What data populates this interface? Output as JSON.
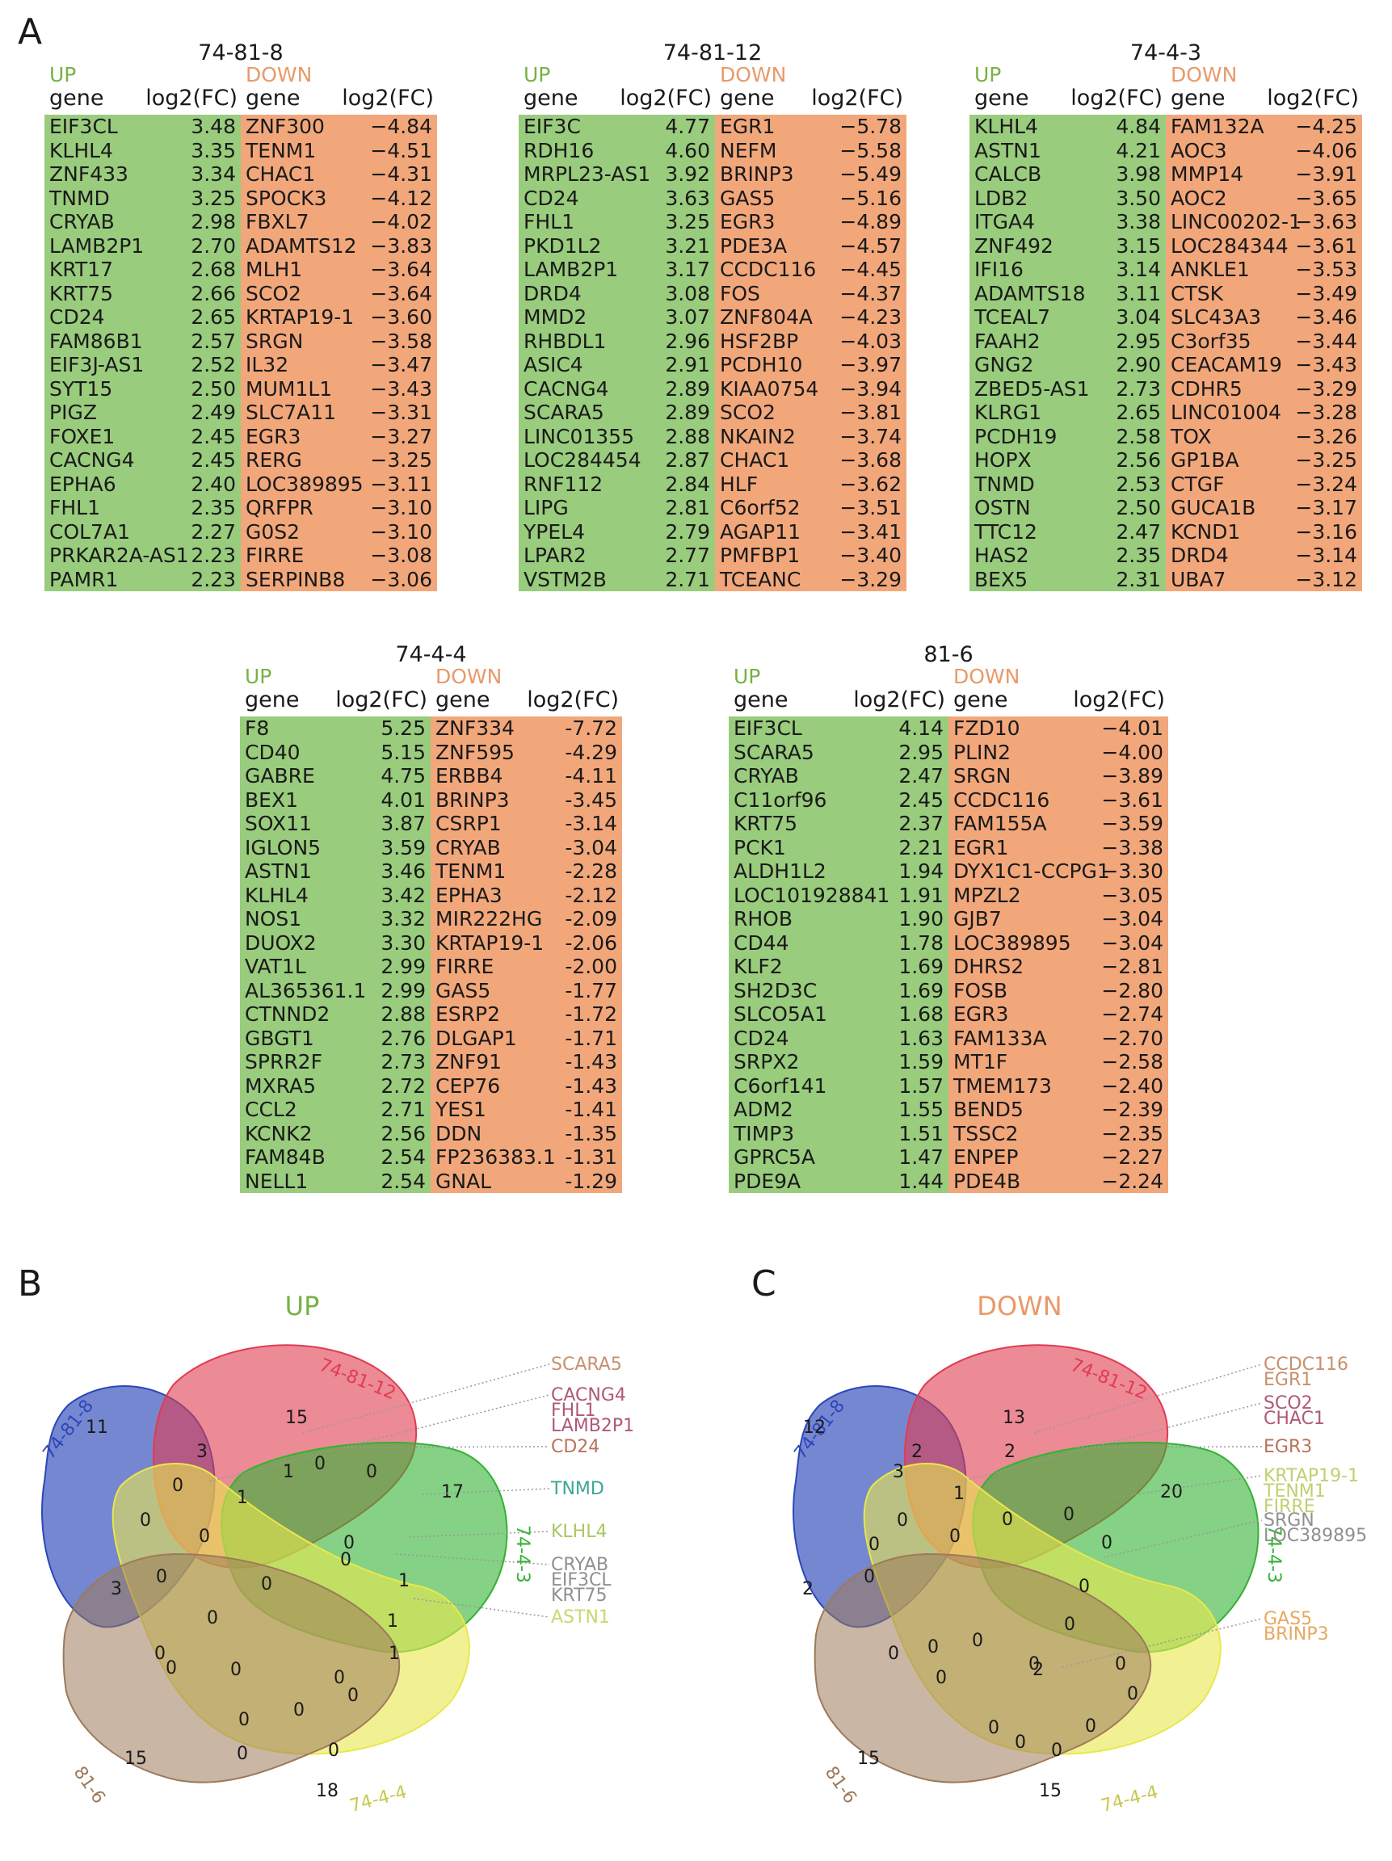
{
  "panels": {
    "a": "A",
    "b": "B",
    "c": "C"
  },
  "tables": [
    {
      "title": "74-81-8",
      "up_label": "UP",
      "down_label": "DOWN",
      "gene_hdr": "gene",
      "fc_hdr": "log2(FC)",
      "up": [
        [
          "EIF3CL",
          "3.48"
        ],
        [
          "KLHL4",
          "3.35"
        ],
        [
          "ZNF433",
          "3.34"
        ],
        [
          "TNMD",
          "3.25"
        ],
        [
          "CRYAB",
          "2.98"
        ],
        [
          "LAMB2P1",
          "2.70"
        ],
        [
          "KRT17",
          "2.68"
        ],
        [
          "KRT75",
          "2.66"
        ],
        [
          "CD24",
          "2.65"
        ],
        [
          "FAM86B1",
          "2.57"
        ],
        [
          "EIF3J-AS1",
          "2.52"
        ],
        [
          "SYT15",
          "2.50"
        ],
        [
          "PIGZ",
          "2.49"
        ],
        [
          "FOXE1",
          "2.45"
        ],
        [
          "CACNG4",
          "2.45"
        ],
        [
          "EPHA6",
          "2.40"
        ],
        [
          "FHL1",
          "2.35"
        ],
        [
          "COL7A1",
          "2.27"
        ],
        [
          "PRKAR2A-AS1",
          "2.23"
        ],
        [
          "PAMR1",
          "2.23"
        ]
      ],
      "down": [
        [
          "ZNF300",
          "−4.84"
        ],
        [
          "TENM1",
          "−4.51"
        ],
        [
          "CHAC1",
          "−4.31"
        ],
        [
          "SPOCK3",
          "−4.12"
        ],
        [
          "FBXL7",
          "−4.02"
        ],
        [
          "ADAMTS12",
          "−3.83"
        ],
        [
          "MLH1",
          "−3.64"
        ],
        [
          "SCO2",
          "−3.64"
        ],
        [
          "KRTAP19-1",
          "−3.60"
        ],
        [
          "SRGN",
          "−3.58"
        ],
        [
          "IL32",
          "−3.47"
        ],
        [
          "MUM1L1",
          "−3.43"
        ],
        [
          "SLC7A11",
          "−3.31"
        ],
        [
          "EGR3",
          "−3.27"
        ],
        [
          "RERG",
          "−3.25"
        ],
        [
          "LOC389895",
          "−3.11"
        ],
        [
          "QRFPR",
          "−3.10"
        ],
        [
          "G0S2",
          "−3.10"
        ],
        [
          "FIRRE",
          "−3.08"
        ],
        [
          "SERPINB8",
          "−3.06"
        ]
      ]
    },
    {
      "title": "74-81-12",
      "up_label": "UP",
      "down_label": "DOWN",
      "gene_hdr": "gene",
      "fc_hdr": "log2(FC)",
      "up": [
        [
          "EIF3C",
          "4.77"
        ],
        [
          "RDH16",
          "4.60"
        ],
        [
          "MRPL23-AS1",
          "3.92"
        ],
        [
          "CD24",
          "3.63"
        ],
        [
          "FHL1",
          "3.25"
        ],
        [
          "PKD1L2",
          "3.21"
        ],
        [
          "LAMB2P1",
          "3.17"
        ],
        [
          "DRD4",
          "3.08"
        ],
        [
          "MMD2",
          "3.07"
        ],
        [
          "RHBDL1",
          "2.96"
        ],
        [
          "ASIC4",
          "2.91"
        ],
        [
          "CACNG4",
          "2.89"
        ],
        [
          "SCARA5",
          "2.89"
        ],
        [
          "LINC01355",
          "2.88"
        ],
        [
          "LOC284454",
          "2.87"
        ],
        [
          "RNF112",
          "2.84"
        ],
        [
          "LIPG",
          "2.81"
        ],
        [
          "YPEL4",
          "2.79"
        ],
        [
          "LPAR2",
          "2.77"
        ],
        [
          "VSTM2B",
          "2.71"
        ]
      ],
      "down": [
        [
          "EGR1",
          "−5.78"
        ],
        [
          "NEFM",
          "−5.58"
        ],
        [
          "BRINP3",
          "−5.49"
        ],
        [
          "GAS5",
          "−5.16"
        ],
        [
          "EGR3",
          "−4.89"
        ],
        [
          "PDE3A",
          "−4.57"
        ],
        [
          "CCDC116",
          "−4.45"
        ],
        [
          "FOS",
          "−4.37"
        ],
        [
          "ZNF804A",
          "−4.23"
        ],
        [
          "HSF2BP",
          "−4.03"
        ],
        [
          "PCDH10",
          "−3.97"
        ],
        [
          "KIAA0754",
          "−3.94"
        ],
        [
          "SCO2",
          "−3.81"
        ],
        [
          "NKAIN2",
          "−3.74"
        ],
        [
          "CHAC1",
          "−3.68"
        ],
        [
          "HLF",
          "−3.62"
        ],
        [
          "C6orf52",
          "−3.51"
        ],
        [
          "AGAP11",
          "−3.41"
        ],
        [
          "PMFBP1",
          "−3.40"
        ],
        [
          "TCEANC",
          "−3.29"
        ]
      ]
    },
    {
      "title": "74-4-3",
      "up_label": "UP",
      "down_label": "DOWN",
      "gene_hdr": "gene",
      "fc_hdr": "log2(FC)",
      "up": [
        [
          "KLHL4",
          "4.84"
        ],
        [
          "ASTN1",
          "4.21"
        ],
        [
          "CALCB",
          "3.98"
        ],
        [
          "LDB2",
          "3.50"
        ],
        [
          "ITGA4",
          "3.38"
        ],
        [
          "ZNF492",
          "3.15"
        ],
        [
          "IFI16",
          "3.14"
        ],
        [
          "ADAMTS18",
          "3.11"
        ],
        [
          "TCEAL7",
          "3.04"
        ],
        [
          "FAAH2",
          "2.95"
        ],
        [
          "GNG2",
          "2.90"
        ],
        [
          "ZBED5-AS1",
          "2.73"
        ],
        [
          "KLRG1",
          "2.65"
        ],
        [
          "PCDH19",
          "2.58"
        ],
        [
          "HOPX",
          "2.56"
        ],
        [
          "TNMD",
          "2.53"
        ],
        [
          "OSTN",
          "2.50"
        ],
        [
          "TTC12",
          "2.47"
        ],
        [
          "HAS2",
          "2.35"
        ],
        [
          "BEX5",
          "2.31"
        ]
      ],
      "down": [
        [
          "FAM132A",
          "−4.25"
        ],
        [
          "AOC3",
          "−4.06"
        ],
        [
          "MMP14",
          "−3.91"
        ],
        [
          "AOC2",
          "−3.65"
        ],
        [
          "LINC00202-1",
          "−3.63"
        ],
        [
          "LOC284344",
          "−3.61"
        ],
        [
          "ANKLE1",
          "−3.53"
        ],
        [
          "CTSK",
          "−3.49"
        ],
        [
          "SLC43A3",
          "−3.46"
        ],
        [
          "C3orf35",
          "−3.44"
        ],
        [
          "CEACAM19",
          "−3.43"
        ],
        [
          "CDHR5",
          "−3.29"
        ],
        [
          "LINC01004",
          "−3.28"
        ],
        [
          "TOX",
          "−3.26"
        ],
        [
          "GP1BA",
          "−3.25"
        ],
        [
          "CTGF",
          "−3.24"
        ],
        [
          "GUCA1B",
          "−3.17"
        ],
        [
          "KCND1",
          "−3.16"
        ],
        [
          "DRD4",
          "−3.14"
        ],
        [
          "UBA7",
          "−3.12"
        ]
      ]
    },
    {
      "title": "74-4-4",
      "up_label": "UP",
      "down_label": "DOWN",
      "gene_hdr": "gene",
      "fc_hdr": "log2(FC)",
      "up": [
        [
          "F8",
          "5.25"
        ],
        [
          "CD40",
          "5.15"
        ],
        [
          "GABRE",
          "4.75"
        ],
        [
          "BEX1",
          "4.01"
        ],
        [
          "SOX11",
          "3.87"
        ],
        [
          "IGLON5",
          "3.59"
        ],
        [
          "ASTN1",
          "3.46"
        ],
        [
          "KLHL4",
          "3.42"
        ],
        [
          "NOS1",
          "3.32"
        ],
        [
          "DUOX2",
          "3.30"
        ],
        [
          "VAT1L",
          "2.99"
        ],
        [
          "AL365361.1",
          "2.99"
        ],
        [
          "CTNND2",
          "2.88"
        ],
        [
          "GBGT1",
          "2.76"
        ],
        [
          "SPRR2F",
          "2.73"
        ],
        [
          "MXRA5",
          "2.72"
        ],
        [
          "CCL2",
          "2.71"
        ],
        [
          "KCNK2",
          "2.56"
        ],
        [
          "FAM84B",
          "2.54"
        ],
        [
          "NELL1",
          "2.54"
        ]
      ],
      "down": [
        [
          "ZNF334",
          "-7.72"
        ],
        [
          "ZNF595",
          "-4.29"
        ],
        [
          "ERBB4",
          "-4.11"
        ],
        [
          "BRINP3",
          "-3.45"
        ],
        [
          "CSRP1",
          "-3.14"
        ],
        [
          "CRYAB",
          "-3.04"
        ],
        [
          "TENM1",
          "-2.28"
        ],
        [
          "EPHA3",
          "-2.12"
        ],
        [
          "MIR222HG",
          "-2.09"
        ],
        [
          "KRTAP19-1",
          "-2.06"
        ],
        [
          "FIRRE",
          "-2.00"
        ],
        [
          "GAS5",
          "-1.77"
        ],
        [
          "ESRP2",
          "-1.72"
        ],
        [
          "DLGAP1",
          "-1.71"
        ],
        [
          "ZNF91",
          "-1.43"
        ],
        [
          "CEP76",
          "-1.43"
        ],
        [
          "YES1",
          "-1.41"
        ],
        [
          "DDN",
          "-1.35"
        ],
        [
          "FP236383.1",
          "-1.31"
        ],
        [
          "GNAL",
          "-1.29"
        ]
      ]
    },
    {
      "title": "81-6",
      "up_label": "UP",
      "down_label": "DOWN",
      "gene_hdr": "gene",
      "fc_hdr": "log2(FC)",
      "up": [
        [
          "EIF3CL",
          "4.14"
        ],
        [
          "SCARA5",
          "2.95"
        ],
        [
          "CRYAB",
          "2.47"
        ],
        [
          "C11orf96",
          "2.45"
        ],
        [
          "KRT75",
          "2.37"
        ],
        [
          "PCK1",
          "2.21"
        ],
        [
          "ALDH1L2",
          "1.94"
        ],
        [
          "LOC101928841",
          "1.91"
        ],
        [
          "RHOB",
          "1.90"
        ],
        [
          "CD44",
          "1.78"
        ],
        [
          "KLF2",
          "1.69"
        ],
        [
          "SH2D3C",
          "1.69"
        ],
        [
          "SLCO5A1",
          "1.68"
        ],
        [
          "CD24",
          "1.63"
        ],
        [
          "SRPX2",
          "1.59"
        ],
        [
          "C6orf141",
          "1.57"
        ],
        [
          "ADM2",
          "1.55"
        ],
        [
          "TIMP3",
          "1.51"
        ],
        [
          "GPRC5A",
          "1.47"
        ],
        [
          "PDE9A",
          "1.44"
        ]
      ],
      "down": [
        [
          "FZD10",
          "−4.01"
        ],
        [
          "PLIN2",
          "−4.00"
        ],
        [
          "SRGN",
          "−3.89"
        ],
        [
          "CCDC116",
          "−3.61"
        ],
        [
          "FAM155A",
          "−3.59"
        ],
        [
          "EGR1",
          "−3.38"
        ],
        [
          "DYX1C1-CCPG1",
          "−3.30"
        ],
        [
          "MPZL2",
          "−3.05"
        ],
        [
          "GJB7",
          "−3.04"
        ],
        [
          "LOC389895",
          "−3.04"
        ],
        [
          "DHRS2",
          "−2.81"
        ],
        [
          "FOSB",
          "−2.80"
        ],
        [
          "EGR3",
          "−2.74"
        ],
        [
          "FAM133A",
          "−2.70"
        ],
        [
          "MT1F",
          "−2.58"
        ],
        [
          "TMEM173",
          "−2.40"
        ],
        [
          "BEND5",
          "−2.39"
        ],
        [
          "TSSC2",
          "−2.35"
        ],
        [
          "ENPEP",
          "−2.27"
        ],
        [
          "PDE4B",
          "−2.24"
        ]
      ]
    }
  ],
  "venn_up": {
    "title": "UP",
    "sets": [
      "74-81-8",
      "74-81-12",
      "74-4-3",
      "74-4-4",
      "81-6"
    ],
    "counts": [
      "11",
      "15",
      "17",
      "18",
      "15",
      "3",
      "3",
      "1",
      "1",
      "1",
      "1",
      "1",
      "0",
      "0",
      "0",
      "0",
      "0",
      "0",
      "0",
      "0",
      "0",
      "0",
      "0",
      "0",
      "0",
      "0",
      "0",
      "0",
      "0",
      "0",
      "0"
    ],
    "callouts": [
      [
        "SCARA5"
      ],
      [
        "CACNG4",
        "FHL1",
        "LAMB2P1"
      ],
      [
        "CD24"
      ],
      [
        "TNMD"
      ],
      [
        "KLHL4"
      ],
      [
        "CRYAB",
        "EIF3CL",
        "KRT75"
      ],
      [
        "ASTN1"
      ]
    ],
    "colors": {
      "set1": "#2d46b8",
      "set2": "#e03c50",
      "set3": "#33b233",
      "set4": "#e8e84c",
      "set5": "#9c7a5a",
      "c_scara": "#c8906e",
      "c_cacng": "#b05878",
      "c_cd24": "#b8745a",
      "c_tnmd": "#3aa890",
      "c_klhl4": "#a8c860",
      "c_cryab": "#909090",
      "c_astn1": "#c8d870"
    }
  },
  "venn_down": {
    "title": "DOWN",
    "sets": [
      "74-81-8",
      "74-81-12",
      "74-4-3",
      "74-4-4",
      "81-6"
    ],
    "counts": [
      "12",
      "13",
      "20",
      "15",
      "15",
      "2",
      "2",
      "2",
      "3",
      "2",
      "1",
      "0",
      "0",
      "0",
      "0",
      "0",
      "0",
      "0",
      "0",
      "0",
      "0",
      "0",
      "0",
      "0",
      "0",
      "0",
      "0",
      "0",
      "0",
      "0",
      "0"
    ],
    "callouts": [
      [
        "CCDC116",
        "EGR1"
      ],
      [
        "SCO2",
        "CHAC1"
      ],
      [
        "EGR3"
      ],
      [
        "KRTAP19-1",
        "TENM1",
        "FIRRE"
      ],
      [
        "SRGN",
        "LOC389895"
      ],
      [
        "GAS5",
        "BRINP3"
      ]
    ],
    "colors": {
      "c_ccdc": "#c8906e",
      "c_sco2": "#b05878",
      "c_egr3": "#b8745a",
      "c_krtap": "#c0d070",
      "c_srgn": "#909090",
      "c_gas5": "#e8a860"
    }
  }
}
